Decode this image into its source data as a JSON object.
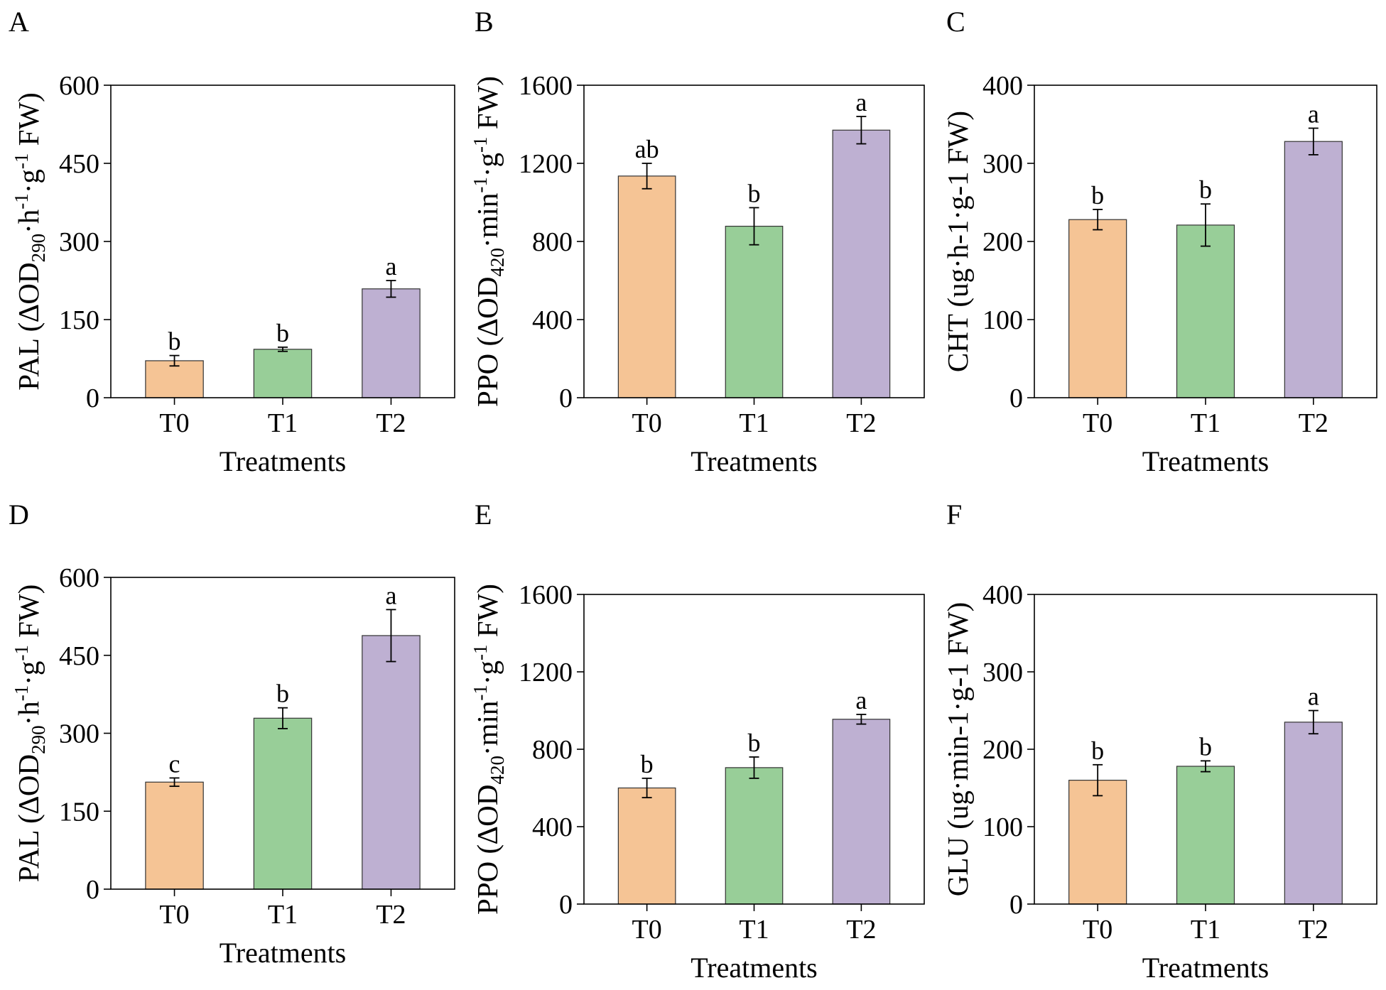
{
  "colors": {
    "T0": "#F5C495",
    "T1": "#98CE98",
    "T2": "#BEB0D2"
  },
  "chart_data": [
    {
      "panel": "A",
      "type": "bar",
      "categories": [
        "T0",
        "T1",
        "T2"
      ],
      "values": [
        71,
        93,
        209
      ],
      "errors": [
        10,
        4,
        16
      ],
      "letters": [
        "b",
        "b",
        "a"
      ],
      "ylim": [
        0,
        600
      ],
      "yticks": [
        0,
        150,
        300,
        450,
        600
      ],
      "xlabel": "Treatments",
      "ylabel": {
        "pre": "PAL (∆OD",
        "sub": "290",
        "mid1": "·h",
        "sup1": "-1",
        "mid2": "·g",
        "sup2": "-1",
        "post": " FW)"
      }
    },
    {
      "panel": "B",
      "type": "bar",
      "categories": [
        "T0",
        "T1",
        "T2"
      ],
      "values": [
        1135,
        878,
        1370
      ],
      "errors": [
        65,
        95,
        70
      ],
      "letters": [
        "ab",
        "b",
        "a"
      ],
      "ylim": [
        0,
        1600
      ],
      "yticks": [
        0,
        400,
        800,
        1200,
        1600
      ],
      "xlabel": "Treatments",
      "ylabel": {
        "pre": "PPO (∆OD",
        "sub": "420",
        "mid1": "·min",
        "sup1": "-1",
        "mid2": "·g",
        "sup2": "-1",
        "post": " FW)"
      }
    },
    {
      "panel": "C",
      "type": "bar",
      "categories": [
        "T0",
        "T1",
        "T2"
      ],
      "values": [
        228,
        221,
        328
      ],
      "errors": [
        13,
        27,
        17
      ],
      "letters": [
        "b",
        "b",
        "a"
      ],
      "ylim": [
        0,
        400
      ],
      "yticks": [
        0,
        100,
        200,
        300,
        400
      ],
      "xlabel": "Treatments",
      "ylabel": {
        "plain": "CHT (ug·h-1·g-1 FW)"
      }
    },
    {
      "panel": "D",
      "type": "bar",
      "categories": [
        "T0",
        "T1",
        "T2"
      ],
      "values": [
        206,
        329,
        488
      ],
      "errors": [
        8,
        20,
        50
      ],
      "letters": [
        "c",
        "b",
        "a"
      ],
      "ylim": [
        0,
        600
      ],
      "yticks": [
        0,
        150,
        300,
        450,
        600
      ],
      "xlabel": "Treatments",
      "ylabel": {
        "pre": "PAL (∆OD",
        "sub": "290",
        "mid1": "·h",
        "sup1": "-1",
        "mid2": "·g",
        "sup2": "-1",
        "post": " FW)"
      }
    },
    {
      "panel": "E",
      "type": "bar",
      "categories": [
        "T0",
        "T1",
        "T2"
      ],
      "values": [
        600,
        705,
        955
      ],
      "errors": [
        50,
        55,
        25
      ],
      "letters": [
        "b",
        "b",
        "a"
      ],
      "ylim": [
        0,
        1600
      ],
      "yticks": [
        0,
        400,
        800,
        1200,
        1600
      ],
      "xlabel": "Treatments",
      "ylabel": {
        "pre": "PPO (∆OD",
        "sub": "420",
        "mid1": "·min",
        "sup1": "-1",
        "mid2": "·g",
        "sup2": "-1",
        "post": " FW)"
      }
    },
    {
      "panel": "F",
      "type": "bar",
      "categories": [
        "T0",
        "T1",
        "T2"
      ],
      "values": [
        160,
        178,
        235
      ],
      "errors": [
        20,
        7,
        15
      ],
      "letters": [
        "b",
        "b",
        "a"
      ],
      "ylim": [
        0,
        400
      ],
      "yticks": [
        0,
        100,
        200,
        300,
        400
      ],
      "xlabel": "Treatments",
      "ylabel": {
        "plain": "GLU (ug·min-1·g-1 FW)"
      }
    }
  ]
}
